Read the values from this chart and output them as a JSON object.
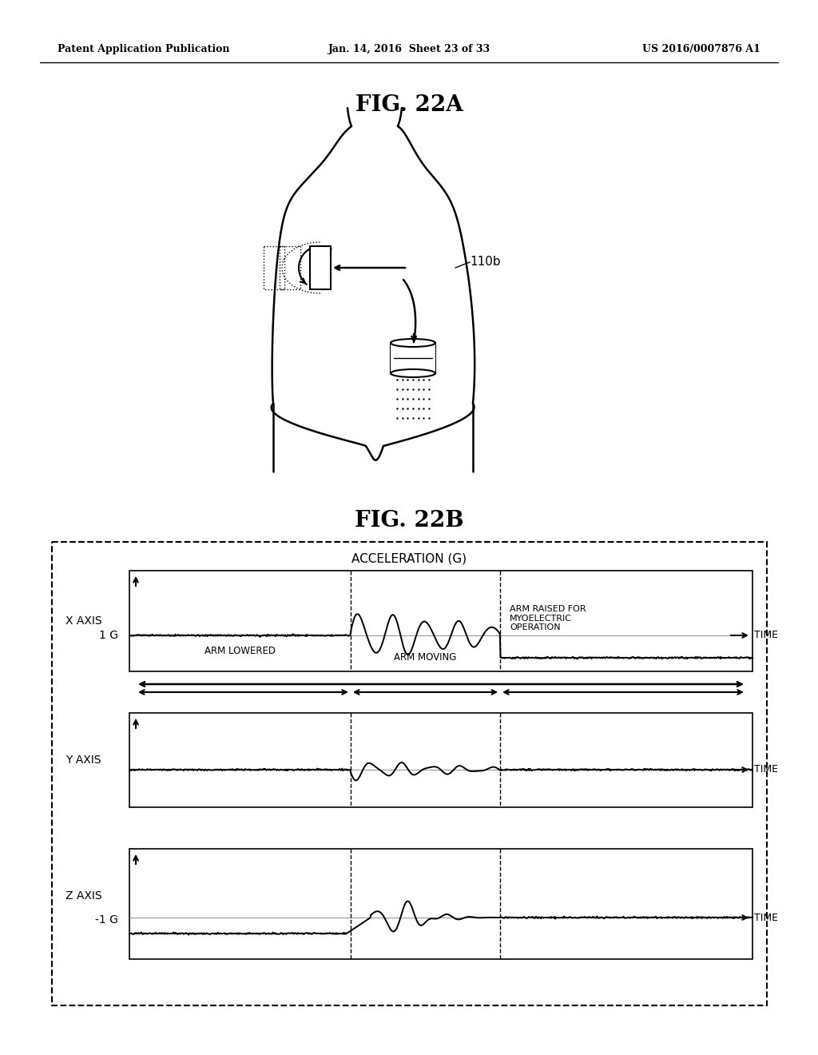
{
  "bg_color": "#ffffff",
  "header_left": "Patent Application Publication",
  "header_center": "Jan. 14, 2016  Sheet 23 of 33",
  "header_right": "US 2016/0007876 A1",
  "fig_22a_title": "FIG. 22A",
  "fig_22b_title": "FIG. 22B",
  "label_110b": "110b",
  "label_x_axis": "X AXIS",
  "label_y_axis": "Y AXIS",
  "label_z_axis": "Z AXIS",
  "label_1g": "1 G",
  "label_neg1g": "-1 G",
  "label_accel": "ACCELERATION (G)",
  "label_time1": "TIME",
  "label_time2": "TIME",
  "label_time3": "TIME",
  "label_arm_lowered": "ARM LOWERED",
  "label_arm_moving": "ARM MOVING",
  "label_arm_raised": "ARM RAISED FOR\nMYOELECTRIC\nOPERATION"
}
